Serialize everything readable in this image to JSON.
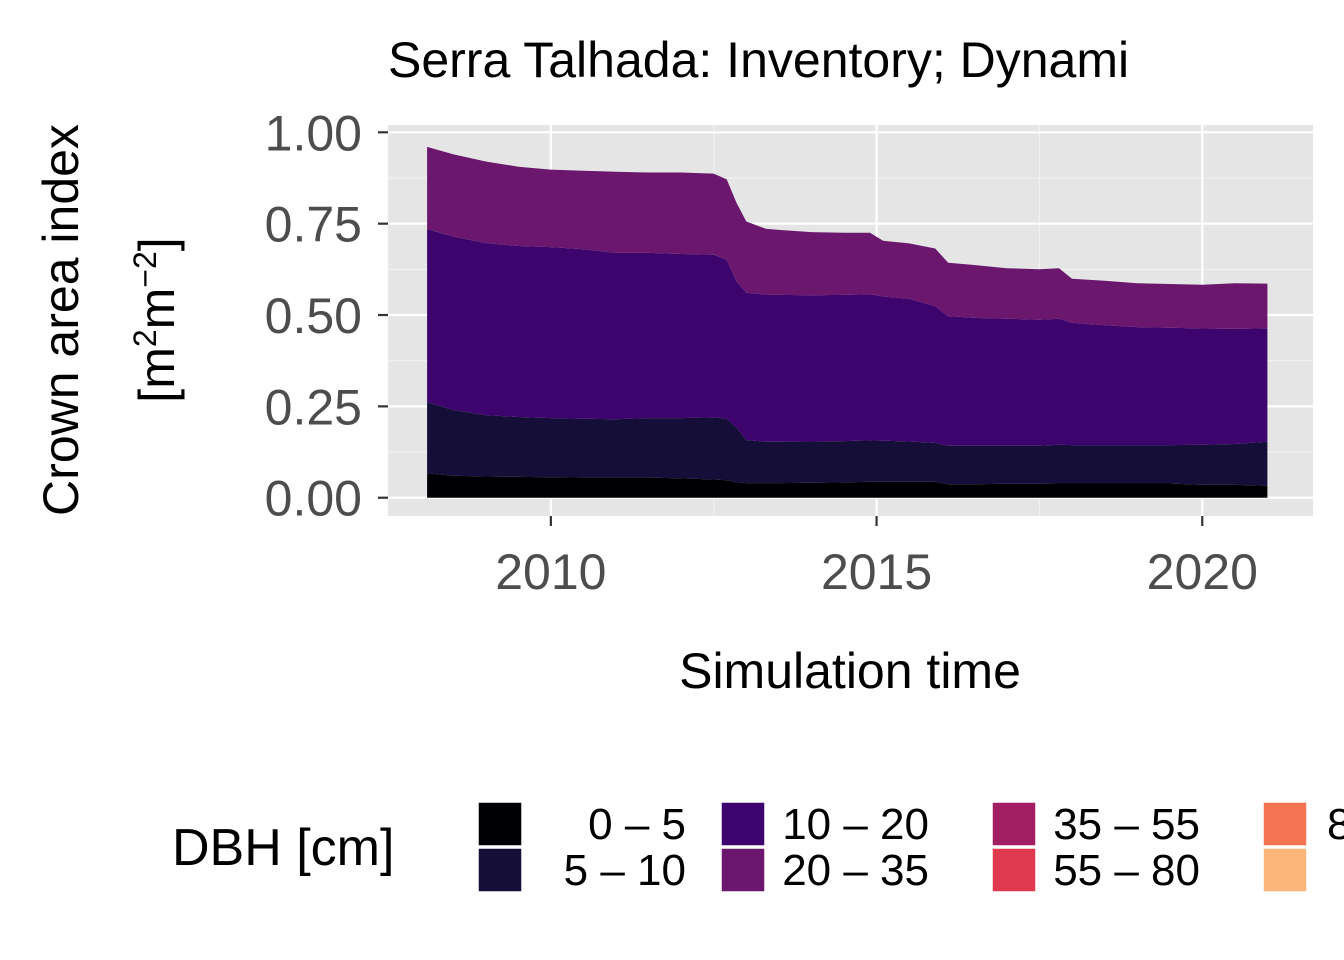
{
  "chart_data": {
    "type": "area",
    "title": "Serra Talhada: Inventory; Dynami",
    "xlabel": "Simulation time",
    "ylabel_line1": "Crown area index",
    "ylabel_line2_prefix": "[m",
    "ylabel_sup1": "2",
    "ylabel_mid": "m",
    "ylabel_sup2": "−2",
    "ylabel_suffix": "]",
    "xlim": [
      2007.5,
      2021.7
    ],
    "ylim": [
      -0.05,
      1.02
    ],
    "x_ticks": [
      2010,
      2015,
      2020
    ],
    "x_tick_labels": [
      "2010",
      "2015",
      "2020"
    ],
    "y_ticks": [
      0,
      0.25,
      0.5,
      0.75,
      1.0
    ],
    "y_tick_labels": [
      "0.00",
      "0.25",
      "0.50",
      "0.75",
      "1.00"
    ],
    "grid": true,
    "stacked": true,
    "x": [
      2008.1,
      2008.5,
      2009.0,
      2009.5,
      2010.0,
      2010.5,
      2011.0,
      2011.5,
      2012.0,
      2012.5,
      2012.7,
      2012.85,
      2013.0,
      2013.3,
      2013.5,
      2014.0,
      2014.5,
      2014.9,
      2015.1,
      2015.5,
      2015.9,
      2016.1,
      2016.5,
      2017.0,
      2017.5,
      2017.8,
      2018.0,
      2018.5,
      2019.0,
      2019.5,
      2020.0,
      2020.5,
      2021.0
    ],
    "series": [
      {
        "name": "0 – 5",
        "color": "#000004",
        "values": [
          0.067,
          0.06,
          0.058,
          0.057,
          0.056,
          0.055,
          0.055,
          0.055,
          0.053,
          0.05,
          0.048,
          0.042,
          0.04,
          0.04,
          0.04,
          0.041,
          0.042,
          0.044,
          0.044,
          0.044,
          0.044,
          0.037,
          0.037,
          0.038,
          0.038,
          0.039,
          0.039,
          0.039,
          0.039,
          0.039,
          0.035,
          0.035,
          0.033
        ]
      },
      {
        "name": "5 – 10",
        "color": "#150e38",
        "values": [
          0.195,
          0.18,
          0.168,
          0.164,
          0.162,
          0.161,
          0.16,
          0.163,
          0.165,
          0.17,
          0.168,
          0.15,
          0.118,
          0.113,
          0.113,
          0.113,
          0.113,
          0.113,
          0.112,
          0.11,
          0.106,
          0.105,
          0.105,
          0.104,
          0.104,
          0.106,
          0.105,
          0.105,
          0.105,
          0.105,
          0.11,
          0.112,
          0.12
        ]
      },
      {
        "name": "10 – 20",
        "color": "#3e046d",
        "values": [
          0.473,
          0.475,
          0.471,
          0.468,
          0.468,
          0.464,
          0.455,
          0.452,
          0.449,
          0.445,
          0.435,
          0.4,
          0.403,
          0.403,
          0.402,
          0.4,
          0.4,
          0.4,
          0.395,
          0.39,
          0.374,
          0.355,
          0.35,
          0.348,
          0.345,
          0.345,
          0.335,
          0.328,
          0.323,
          0.321,
          0.318,
          0.315,
          0.311
        ]
      },
      {
        "name": "20 – 35",
        "color": "#6b176e",
        "values": [
          0.225,
          0.225,
          0.223,
          0.217,
          0.212,
          0.215,
          0.222,
          0.22,
          0.223,
          0.222,
          0.22,
          0.215,
          0.195,
          0.18,
          0.178,
          0.173,
          0.17,
          0.168,
          0.152,
          0.152,
          0.158,
          0.146,
          0.145,
          0.138,
          0.138,
          0.138,
          0.12,
          0.122,
          0.12,
          0.12,
          0.12,
          0.125,
          0.122
        ]
      }
    ],
    "legend": {
      "title": "DBH [cm]",
      "position": "bottom",
      "entries": [
        {
          "label": "0 – 5",
          "color": "#000004"
        },
        {
          "label": "5 – 10",
          "color": "#150e38"
        },
        {
          "label": "10 – 20",
          "color": "#3e046d"
        },
        {
          "label": "20 – 35",
          "color": "#6b176e"
        },
        {
          "label": "35 – 55",
          "color": "#a21e62"
        },
        {
          "label": "55 – 80",
          "color": "#e03a4f"
        },
        {
          "label": "8",
          "color": "#f57452"
        },
        {
          "label": "",
          "color": "#fdb67a"
        }
      ]
    },
    "colors": {
      "panel_background": "#e5e5e5",
      "grid_major": "#ffffff",
      "grid_minor": "#f2f2f2",
      "tick_text": "#4d4d4d"
    }
  }
}
